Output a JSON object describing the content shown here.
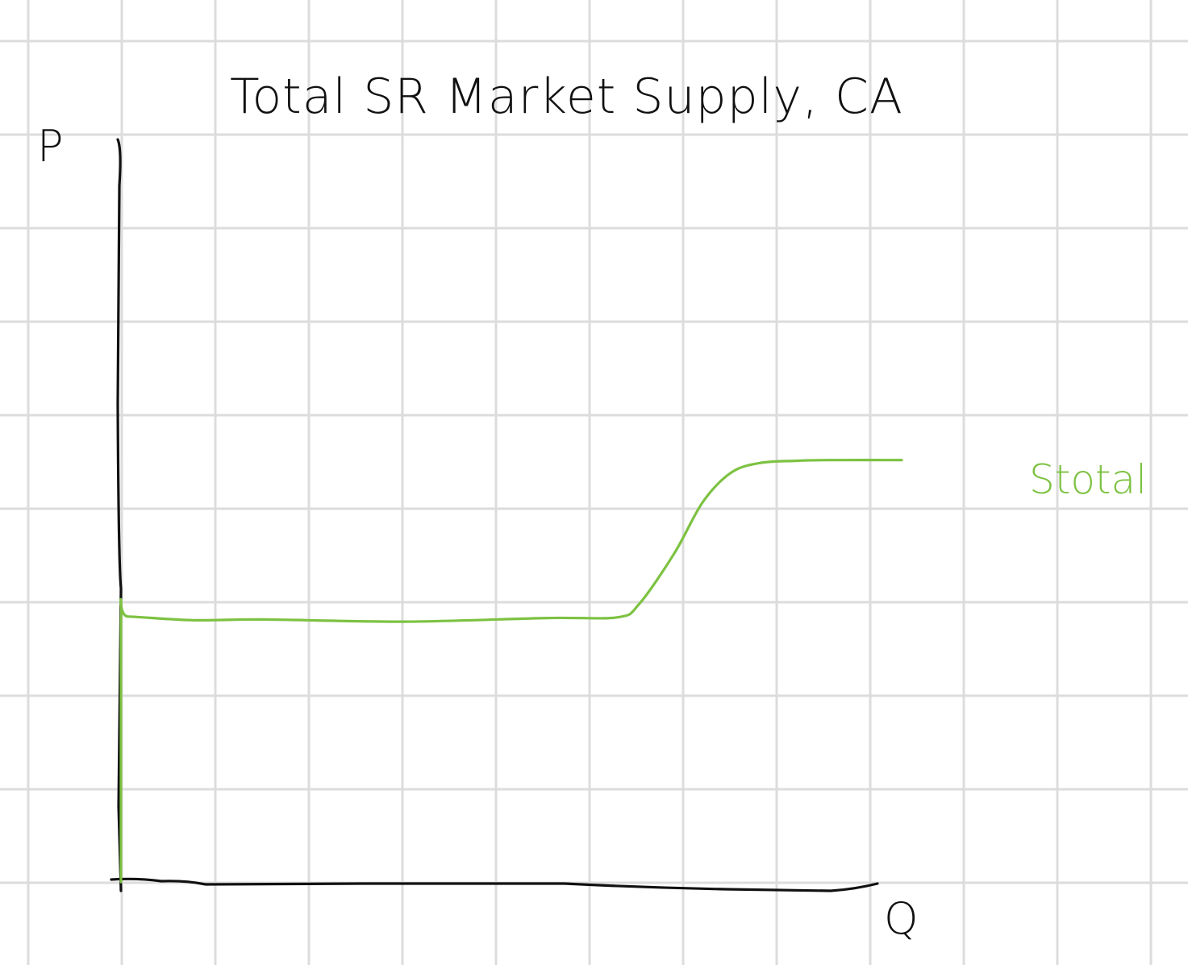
{
  "colors": {
    "background": "#ffffff",
    "grid": "#dcdcdc",
    "ink": "#111111",
    "supply": "#7dc242"
  },
  "chart_data": {
    "type": "line",
    "title": "Total SR Market Supply, CA",
    "xlabel": "Q",
    "ylabel": "P",
    "grid": true,
    "xlim": [
      0,
      100
    ],
    "ylim": [
      0,
      100
    ],
    "series": [
      {
        "name": "Stotal",
        "color": "#7dc242",
        "x": [
          0,
          0,
          1,
          10,
          20,
          40,
          60,
          70,
          73,
          78,
          82,
          86,
          90,
          95,
          100,
          110
        ],
        "y": [
          0,
          36,
          36.3,
          35.8,
          35.9,
          35.6,
          36.1,
          36.2,
          38,
          45,
          52,
          56,
          57.3,
          57.6,
          57.7,
          57.7
        ]
      }
    ]
  }
}
